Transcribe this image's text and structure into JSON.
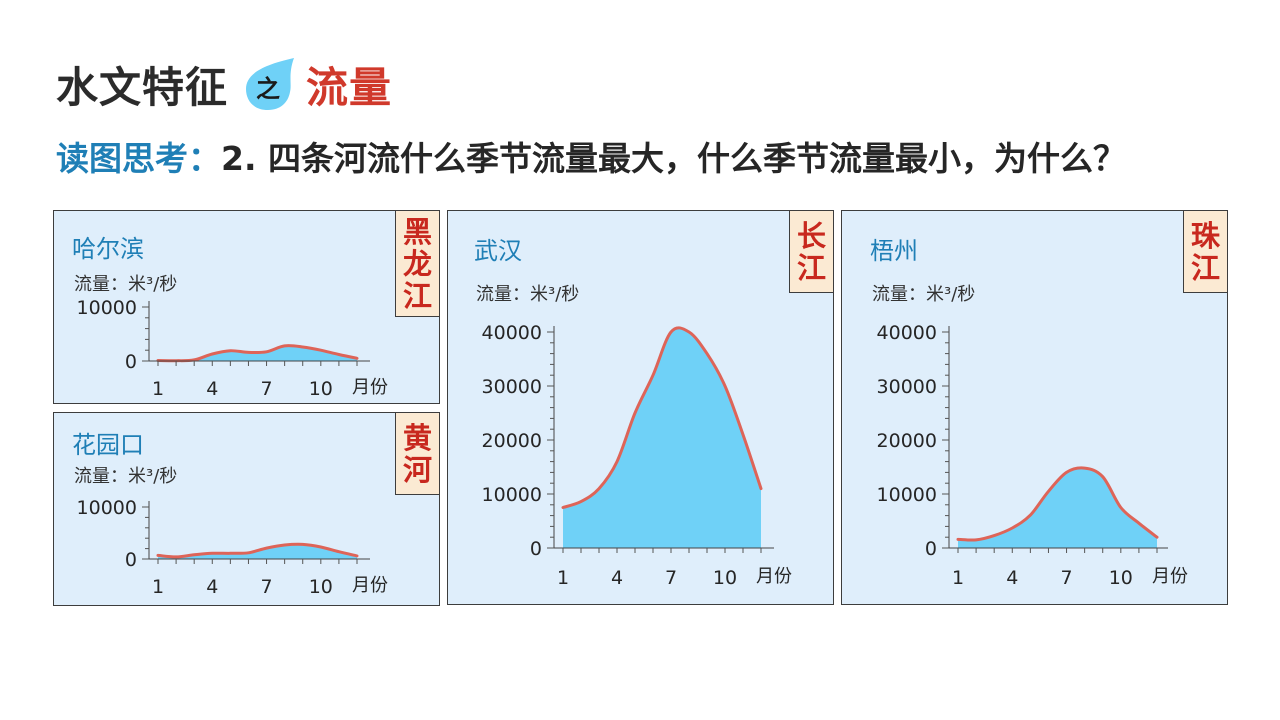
{
  "slide": {
    "title_main": "水文特征",
    "title_connector": "之",
    "title_accent": "流量",
    "question_label": "读图思考：",
    "question_text": "2. 四条河流什么季节流量最大，什么季节流量最小，为什么？"
  },
  "colors": {
    "fill": "#6fd1f7",
    "line": "#de6458",
    "panel_bg": "#dfeefb",
    "tag_bg": "#fbead3",
    "tag_text": "#c8281e",
    "station_text": "#1f7fb6",
    "drop": "#6fd1f7"
  },
  "chart_data": [
    {
      "id": "heilongjiang",
      "type": "area",
      "title": "哈尔滨",
      "river": "黑龙江",
      "ylabel": "流量：米³/秒",
      "xlabel": "月份",
      "x": [
        1,
        2,
        3,
        4,
        5,
        6,
        7,
        8,
        9,
        10,
        11,
        12
      ],
      "series": [
        {
          "values": [
            100,
            50,
            200,
            1300,
            1900,
            1600,
            1700,
            2800,
            2600,
            2000,
            1200,
            500
          ]
        }
      ],
      "ylim": [
        0,
        10000
      ],
      "yticks": [
        0,
        10000
      ],
      "xticks": [
        1,
        4,
        7,
        10
      ]
    },
    {
      "id": "huanghe",
      "type": "area",
      "title": "花园口",
      "river": "黄河",
      "ylabel": "流量：米³/秒",
      "xlabel": "月份",
      "x": [
        1,
        2,
        3,
        4,
        5,
        6,
        7,
        8,
        9,
        10,
        11,
        12
      ],
      "series": [
        {
          "values": [
            700,
            400,
            800,
            1100,
            1100,
            1200,
            2100,
            2700,
            2800,
            2300,
            1400,
            600
          ]
        }
      ],
      "ylim": [
        0,
        10000
      ],
      "yticks": [
        0,
        10000
      ],
      "xticks": [
        1,
        4,
        7,
        10
      ]
    },
    {
      "id": "changjiang",
      "type": "area",
      "title": "武汉",
      "river": "长江",
      "ylabel": "流量：米³/秒",
      "xlabel": "月份",
      "x": [
        1,
        2,
        3,
        4,
        5,
        6,
        7,
        8,
        9,
        10,
        11,
        12
      ],
      "series": [
        {
          "values": [
            7500,
            8600,
            11000,
            16000,
            25000,
            32000,
            40000,
            40000,
            36000,
            30000,
            21000,
            11000
          ]
        }
      ],
      "ylim": [
        0,
        40000
      ],
      "yticks": [
        0,
        10000,
        20000,
        30000,
        40000
      ],
      "xticks": [
        1,
        4,
        7,
        10
      ]
    },
    {
      "id": "zhujiang",
      "type": "area",
      "title": "梧州",
      "river": "珠江",
      "ylabel": "流量：米³/秒",
      "xlabel": "月份",
      "x": [
        1,
        2,
        3,
        4,
        5,
        6,
        7,
        8,
        9,
        10,
        11,
        12
      ],
      "series": [
        {
          "values": [
            1600,
            1500,
            2300,
            3700,
            6100,
            10500,
            14000,
            14800,
            13200,
            7500,
            4600,
            2000
          ]
        }
      ],
      "ylim": [
        0,
        40000
      ],
      "yticks": [
        0,
        10000,
        20000,
        30000,
        40000
      ],
      "xticks": [
        1,
        4,
        7,
        10
      ]
    }
  ]
}
